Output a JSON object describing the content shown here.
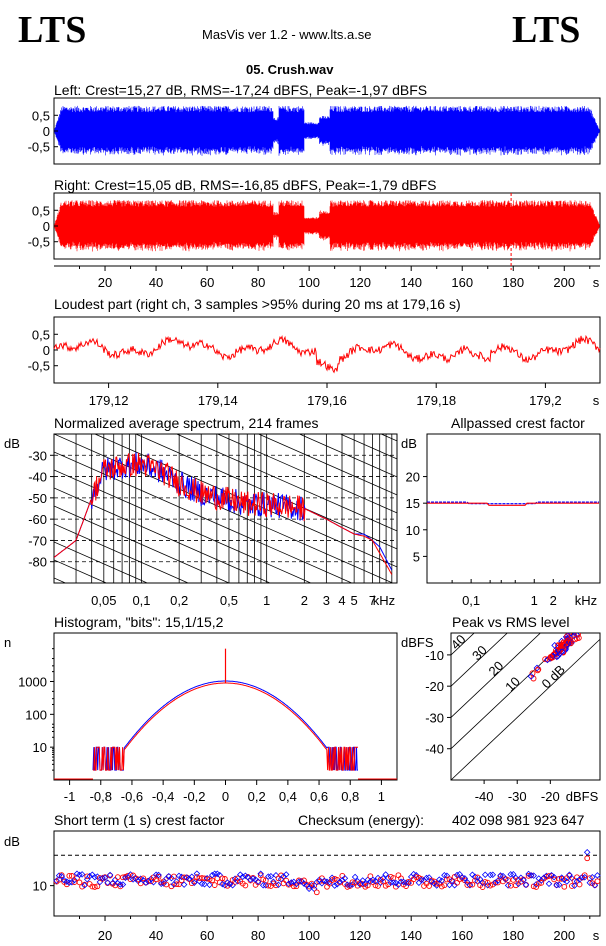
{
  "header": {
    "logo_left": "LTS",
    "logo_right": "LTS",
    "app_title": "MasVis ver 1.2 - www.lts.a.se",
    "file_title": "05. Crush.wav"
  },
  "colors": {
    "left": "#0000ff",
    "right": "#ff0000",
    "grid": "#000000"
  },
  "chart_data": [
    {
      "id": "left-waveform",
      "type": "line",
      "title": "Left: Crest=15,27 dB, RMS=-17,24 dBFS, Peak=-1,97 dBFS",
      "xlim": [
        0,
        214
      ],
      "ylim": [
        -1,
        1
      ],
      "y_ticks": [
        "0,5",
        "0",
        "-0,5"
      ],
      "series": [
        {
          "channel": "left",
          "peak": 0.8
        }
      ]
    },
    {
      "id": "right-waveform",
      "type": "line",
      "title": "Right: Crest=15,05 dB, RMS=-16,85 dBFS, Peak=-1,79 dBFS",
      "xlim": [
        0,
        214
      ],
      "ylim": [
        -1,
        1
      ],
      "y_ticks": [
        "0,5",
        "0",
        "-0,5"
      ],
      "x_ticks": [
        "20",
        "40",
        "60",
        "80",
        "100",
        "120",
        "140",
        "160",
        "180",
        "200"
      ],
      "x_unit": "s",
      "marker_x": 179.16,
      "series": [
        {
          "channel": "right",
          "peak": 0.82
        }
      ]
    },
    {
      "id": "loudest-part",
      "type": "line",
      "title": "Loudest part (right ch, 3 samples >95% during 20 ms at 179,16 s)",
      "xlim": [
        179.11,
        179.21
      ],
      "ylim": [
        -1,
        1
      ],
      "y_ticks": [
        "0,5",
        "0",
        "-0,5"
      ],
      "x_ticks": [
        "179,12",
        "179,14",
        "179,16",
        "179,18",
        "179,2"
      ],
      "x_unit": "s"
    },
    {
      "id": "avg-spectrum",
      "type": "line",
      "title": "Normalized average spectrum, 214 frames",
      "ylabel": "dB",
      "y_ticks": [
        "-30",
        "-40",
        "-50",
        "-60",
        "-70",
        "-80"
      ],
      "x_ticks": [
        "0,05",
        "0,1",
        "0,2",
        "0,5",
        "1",
        "2",
        "3",
        "4",
        "5",
        "7"
      ],
      "x_unit": "kHz",
      "ylim": [
        -90,
        -20
      ],
      "xlim_khz": [
        0.02,
        11
      ],
      "series": [
        {
          "channel": "left",
          "points": [
            [
              0.02,
              -78
            ],
            [
              0.03,
              -70
            ],
            [
              0.04,
              -50
            ],
            [
              0.05,
              -37
            ],
            [
              0.07,
              -35
            ],
            [
              0.1,
              -34
            ],
            [
              0.15,
              -38
            ],
            [
              0.2,
              -43
            ],
            [
              0.3,
              -48
            ],
            [
              0.5,
              -51
            ],
            [
              0.7,
              -53
            ],
            [
              1,
              -53
            ],
            [
              2,
              -55
            ],
            [
              3,
              -60
            ],
            [
              4,
              -64
            ],
            [
              5,
              -67
            ],
            [
              6,
              -67
            ],
            [
              7,
              -70
            ],
            [
              8,
              -73
            ],
            [
              10,
              -84
            ]
          ]
        },
        {
          "channel": "right",
          "points": [
            [
              0.02,
              -78
            ],
            [
              0.03,
              -70
            ],
            [
              0.04,
              -50
            ],
            [
              0.05,
              -37
            ],
            [
              0.07,
              -35
            ],
            [
              0.1,
              -34
            ],
            [
              0.15,
              -38
            ],
            [
              0.2,
              -43
            ],
            [
              0.3,
              -48
            ],
            [
              0.5,
              -51
            ],
            [
              0.7,
              -53
            ],
            [
              1,
              -53
            ],
            [
              2,
              -55
            ],
            [
              3,
              -60
            ],
            [
              4,
              -64
            ],
            [
              5,
              -67
            ],
            [
              6,
              -68
            ],
            [
              7,
              -70
            ],
            [
              8,
              -76
            ],
            [
              10,
              -86
            ]
          ]
        }
      ]
    },
    {
      "id": "allpassed-crest",
      "type": "line",
      "title": "Allpassed crest factor",
      "ylabel": "dB",
      "y_ticks": [
        "20",
        "15",
        "10",
        "5"
      ],
      "x_ticks": [
        "0,1",
        "1",
        "2"
      ],
      "x_unit": "kHz",
      "ylim": [
        0,
        28
      ],
      "series": [
        {
          "channel": "left",
          "value": 15.2
        },
        {
          "channel": "right",
          "value": 15.0
        }
      ]
    },
    {
      "id": "histogram",
      "type": "line",
      "title": "Histogram, \"bits\": 15,1/15,2",
      "ylabel": "n",
      "y_ticks": [
        "1000",
        "100",
        "10"
      ],
      "x_ticks": [
        "-1",
        "-0,8",
        "-0,6",
        "-0,4",
        "-0,2",
        "0",
        "0,2",
        "0,4",
        "0,6",
        "0,8",
        "1"
      ],
      "xlim": [
        -1.1,
        1.1
      ],
      "ylim_log": [
        1,
        30000
      ],
      "center_peak": 10000,
      "center_level": 900,
      "edge_x": 0.65
    },
    {
      "id": "peak-vs-rms",
      "type": "scatter",
      "title": "Peak vs RMS level",
      "ylabel": "dBFS",
      "xlabel": "dBFS",
      "y_ticks": [
        "-10",
        "-20",
        "-30",
        "-40"
      ],
      "x_ticks": [
        "-40",
        "-30",
        "-20"
      ],
      "diag_labels": [
        "40",
        "30",
        "20",
        "10",
        "0 dB"
      ],
      "xlim": [
        -50,
        -5
      ],
      "ylim": [
        -50,
        -3
      ],
      "series": [
        {
          "channel": "left",
          "cluster_rms": -16,
          "cluster_peak": -7
        },
        {
          "channel": "right",
          "cluster_rms": -16,
          "cluster_peak": -7
        }
      ]
    },
    {
      "id": "short-term-crest",
      "type": "scatter",
      "title": "Short term (1 s) crest factor",
      "checksum_label": "Checksum (energy):",
      "checksum_value": "402 098 981 923 647",
      "ylabel": "dB",
      "y_ticks": [
        "10"
      ],
      "x_ticks": [
        "20",
        "40",
        "60",
        "80",
        "100",
        "120",
        "140",
        "160",
        "180",
        "200"
      ],
      "x_unit": "s",
      "xlim": [
        0,
        214
      ],
      "ylim": [
        0,
        28
      ],
      "dashed_level": 20,
      "series": [
        {
          "channel": "left",
          "mean": 12
        },
        {
          "channel": "right",
          "mean": 11.5
        }
      ]
    }
  ]
}
